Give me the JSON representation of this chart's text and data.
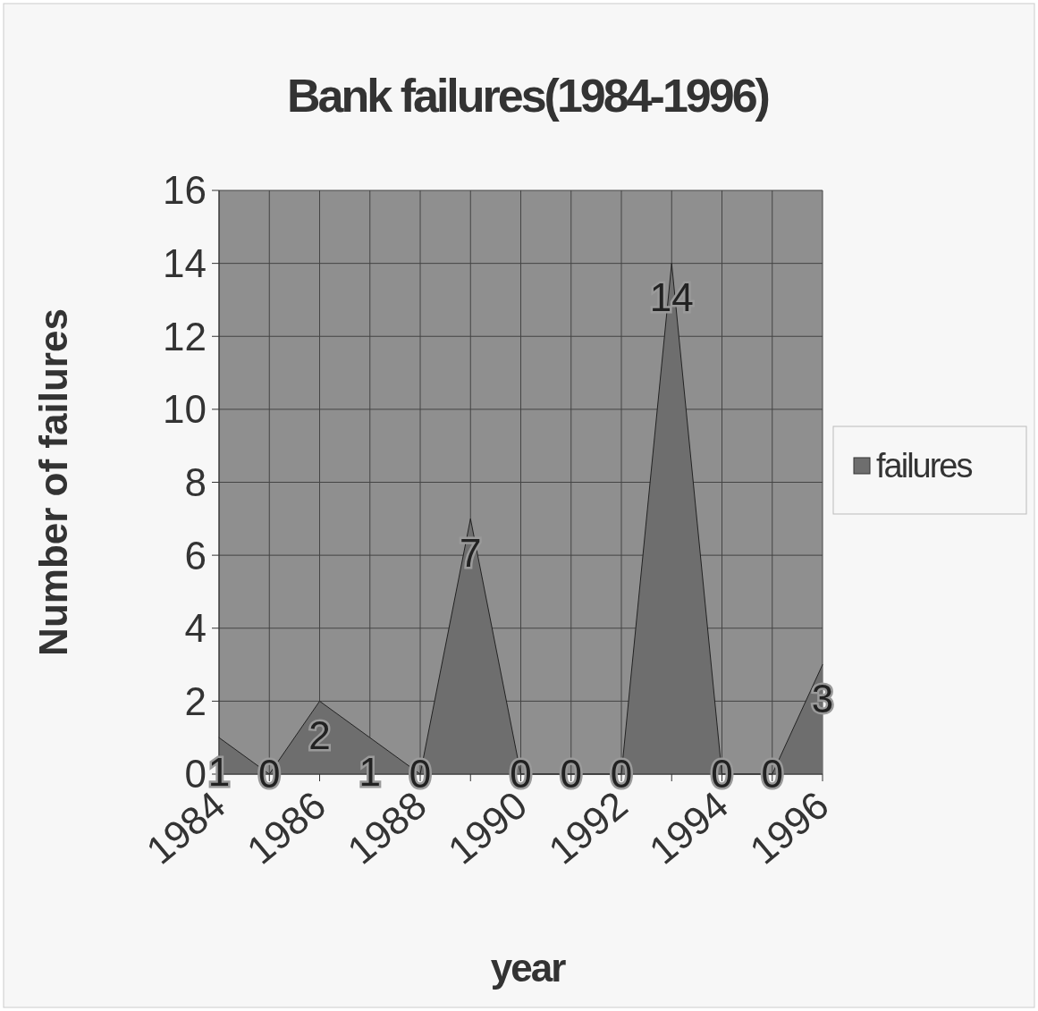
{
  "chart_data": {
    "type": "area",
    "title": "Bank failures(1984-1996)",
    "xlabel": "year",
    "ylabel": "Number of failures",
    "x": [
      1984,
      1985,
      1986,
      1987,
      1988,
      1989,
      1990,
      1991,
      1992,
      1993,
      1994,
      1995,
      1996
    ],
    "series": [
      {
        "name": "failures",
        "color": "#6e6e6e",
        "values": [
          1,
          0,
          2,
          1,
          0,
          7,
          0,
          0,
          0,
          14,
          0,
          0,
          3
        ]
      }
    ],
    "xlim": [
      1984,
      1996
    ],
    "xticks": [
      1984,
      {
        "value": 1985,
        "label": null
      },
      1986,
      {
        "value": 1987,
        "label": null
      },
      1988,
      {
        "value": 1989,
        "label": null
      },
      1990,
      {
        "value": 1991,
        "label": null
      },
      1992,
      {
        "value": 1993,
        "label": null
      },
      1994,
      {
        "value": 1995,
        "label": null
      },
      1996
    ],
    "ylim": [
      0,
      16
    ],
    "yticks": [
      0,
      2,
      4,
      6,
      8,
      10,
      12,
      14,
      16
    ],
    "grid": true,
    "legend": "right",
    "data_labels": true
  }
}
